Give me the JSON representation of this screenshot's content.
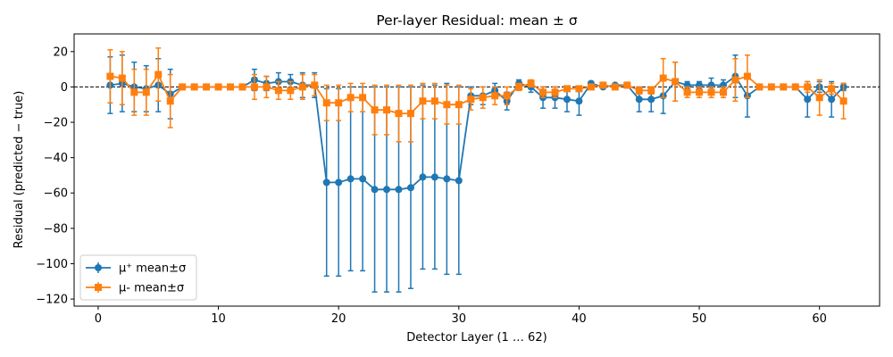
{
  "chart_data": {
    "type": "errorbar-line",
    "title": "Per-layer Residual: mean ± σ",
    "xlabel": "Detector Layer (1 … 62)",
    "ylabel": "Residual (predicted − true)",
    "xlim": [
      -2,
      65
    ],
    "ylim": [
      -124,
      30
    ],
    "xticks": [
      0,
      10,
      20,
      30,
      40,
      50,
      60
    ],
    "yticks": [
      20,
      0,
      -20,
      -40,
      -60,
      -80,
      -100,
      -120
    ],
    "reference_line": {
      "y": 0,
      "style": "dashed",
      "color": "#000000"
    },
    "legend_position": "lower-left",
    "x": [
      1,
      2,
      3,
      4,
      5,
      6,
      7,
      8,
      9,
      10,
      11,
      12,
      13,
      14,
      15,
      16,
      17,
      18,
      19,
      20,
      21,
      22,
      23,
      24,
      25,
      26,
      27,
      28,
      29,
      30,
      31,
      32,
      33,
      34,
      35,
      36,
      37,
      38,
      39,
      40,
      41,
      42,
      43,
      44,
      45,
      46,
      47,
      48,
      49,
      50,
      51,
      52,
      53,
      54,
      55,
      56,
      57,
      58,
      59,
      60,
      61,
      62
    ],
    "series": [
      {
        "name": "μ⁺ mean±σ",
        "color": "#1f77b4",
        "marker": "circle",
        "mean": [
          1,
          2,
          0,
          -1,
          1,
          -4,
          0,
          0,
          0,
          0,
          0,
          0,
          4,
          2,
          3,
          3,
          1,
          1,
          -54,
          -54,
          -52,
          -52,
          -58,
          -58,
          -58,
          -57,
          -51,
          -51,
          -52,
          -53,
          -5,
          -5,
          -2,
          -8,
          2,
          0,
          -6,
          -6,
          -7,
          -8,
          2,
          0,
          1,
          1,
          -7,
          -7,
          -5,
          3,
          1,
          1,
          1,
          1,
          6,
          -5,
          0,
          0,
          0,
          0,
          -7,
          0,
          -7,
          0
        ],
        "sigma": [
          16,
          16,
          14,
          13,
          15,
          14,
          0,
          0,
          0,
          0,
          0,
          0,
          6,
          4,
          5,
          4,
          7,
          7,
          53,
          53,
          52,
          52,
          58,
          58,
          58,
          57,
          52,
          52,
          54,
          53,
          5,
          5,
          4,
          5,
          2,
          3,
          6,
          6,
          7,
          8,
          1,
          1,
          1,
          1,
          7,
          7,
          10,
          11,
          2,
          2,
          4,
          3,
          12,
          12,
          0,
          0,
          0,
          0,
          10,
          3,
          10,
          2
        ]
      },
      {
        "name": "μ- mean±σ",
        "color": "#ff7f0e",
        "marker": "square",
        "mean": [
          6,
          5,
          -3,
          -3,
          7,
          -8,
          0,
          0,
          0,
          0,
          0,
          0,
          0,
          0,
          -2,
          -2,
          0,
          1,
          -9,
          -9,
          -6,
          -6,
          -13,
          -13,
          -15,
          -15,
          -8,
          -8,
          -10,
          -10,
          -7,
          -6,
          -5,
          -5,
          0,
          2,
          -3,
          -3,
          -1,
          -1,
          0,
          1,
          0,
          1,
          -2,
          -2,
          5,
          3,
          -3,
          -3,
          -3,
          -3,
          4,
          6,
          0,
          0,
          0,
          0,
          0,
          -6,
          -1,
          -8
        ],
        "sigma": [
          15,
          15,
          13,
          13,
          15,
          15,
          0,
          0,
          0,
          0,
          0,
          0,
          7,
          6,
          5,
          5,
          7,
          6,
          10,
          10,
          8,
          8,
          14,
          14,
          16,
          16,
          10,
          10,
          11,
          11,
          6,
          6,
          5,
          5,
          2,
          2,
          3,
          3,
          1,
          1,
          1,
          1,
          1,
          1,
          2,
          2,
          11,
          11,
          3,
          3,
          3,
          3,
          12,
          12,
          0,
          0,
          0,
          0,
          3,
          10,
          3,
          10
        ]
      }
    ]
  }
}
